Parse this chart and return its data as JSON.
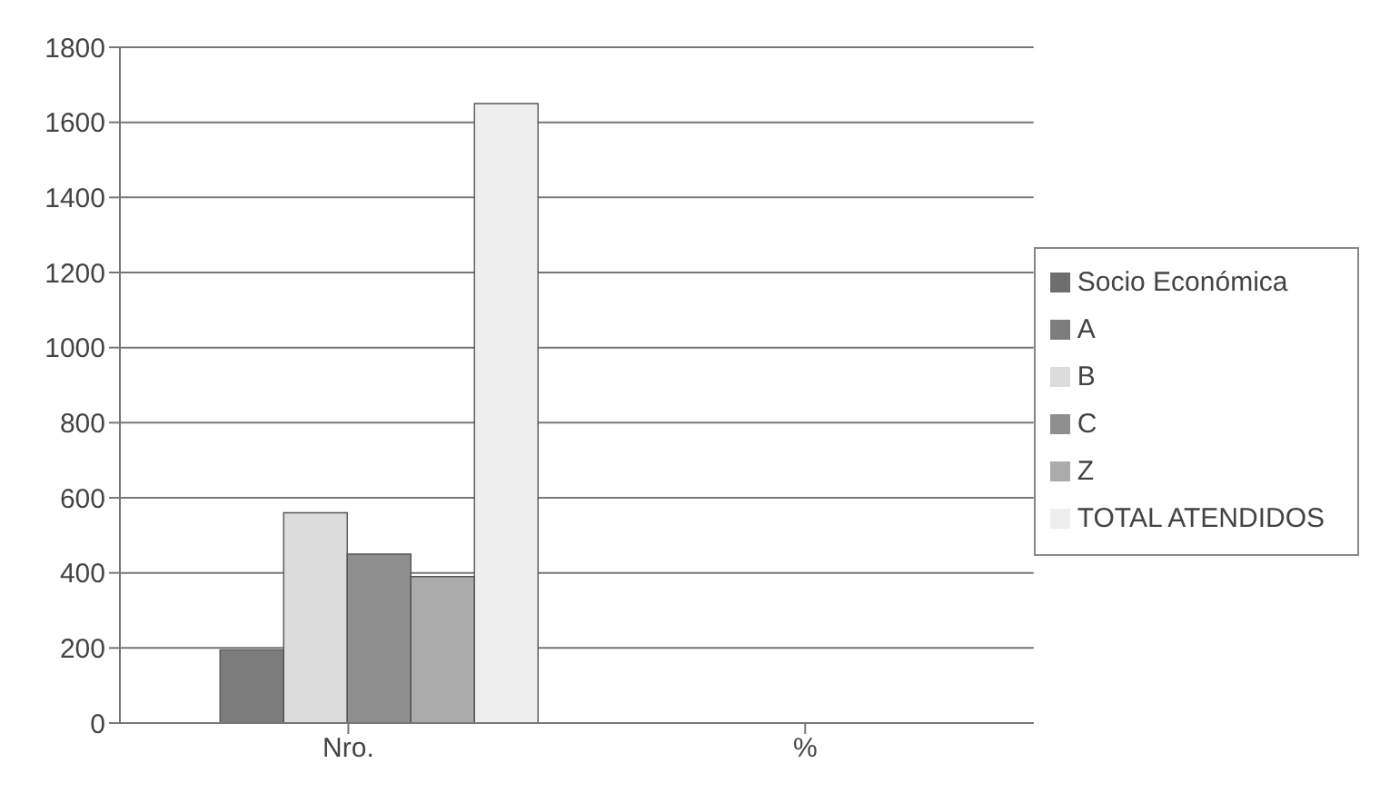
{
  "chart_data": {
    "type": "bar",
    "categories": [
      "Nro.",
      "%"
    ],
    "series": [
      {
        "name": "Socio Económica",
        "color": "#6e6e6e",
        "values": [
          0,
          0
        ]
      },
      {
        "name": "A",
        "color": "#7d7d7d",
        "values": [
          195,
          1
        ]
      },
      {
        "name": "B",
        "color": "#dcdcdc",
        "values": [
          560,
          1
        ]
      },
      {
        "name": "C",
        "color": "#8f8f8f",
        "values": [
          450,
          1
        ]
      },
      {
        "name": "Z",
        "color": "#ababab",
        "values": [
          390,
          1
        ]
      },
      {
        "name": "TOTAL ATENDIDOS",
        "color": "#eeeeee",
        "values": [
          1650,
          1
        ]
      }
    ],
    "ylim": [
      0,
      1800
    ],
    "yticks": [
      0,
      200,
      400,
      600,
      800,
      1000,
      1200,
      1400,
      1600,
      1800
    ],
    "grid": "y",
    "legend": "right"
  }
}
